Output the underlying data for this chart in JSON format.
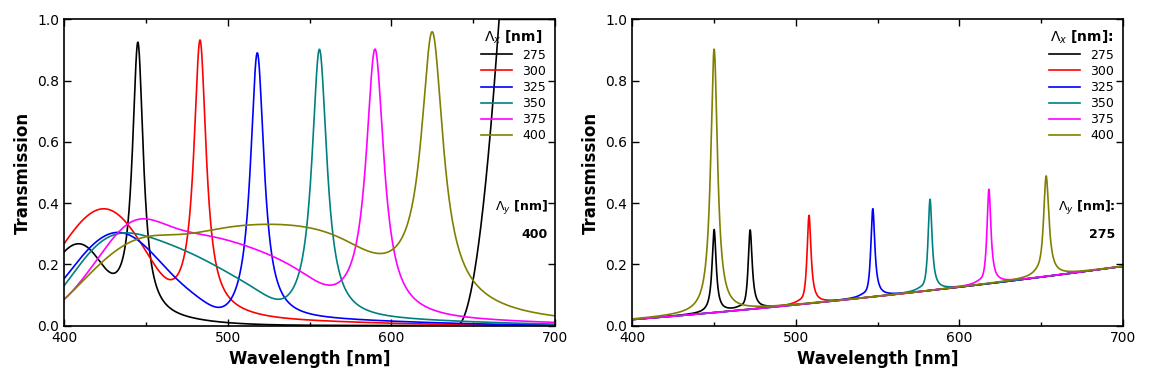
{
  "colors": [
    "#000000",
    "#ff0000",
    "#0000ff",
    "#008080",
    "#ff00ff",
    "#808000"
  ],
  "labels": [
    "275",
    "300",
    "325",
    "350",
    "375",
    "400"
  ],
  "left_lambda_y": "400",
  "right_lambda_y": "275",
  "xlabel": "Wavelength [nm]",
  "ylabel": "Transmission",
  "xlim": [
    400,
    700
  ],
  "ylim": [
    0.0,
    1.0
  ],
  "left_peak_centers": [
    445,
    483,
    518,
    556,
    590,
    625
  ],
  "left_peak_heights": [
    0.87,
    0.87,
    0.87,
    0.87,
    0.85,
    0.84
  ],
  "left_peak_widths": [
    8,
    9,
    10,
    11,
    13,
    16
  ],
  "right_peak2_centers": [
    472,
    508,
    547,
    582,
    618,
    653
  ],
  "right_peak2_heights": [
    0.27,
    0.3,
    0.3,
    0.31,
    0.32,
    0.34
  ],
  "right_peak2_widths": [
    3,
    3,
    3,
    3,
    3,
    4
  ],
  "right_main_heights": [
    0.0,
    0.0,
    0.0,
    0.0,
    0.0,
    0.86
  ],
  "background_color": "#ffffff"
}
